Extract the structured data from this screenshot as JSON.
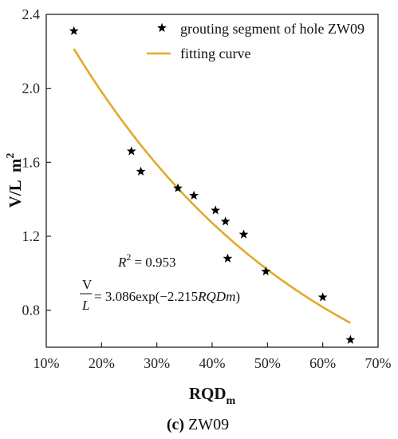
{
  "chart_data": {
    "type": "scatter",
    "xlabel": "RQD",
    "xlabel_sub": "m",
    "ylabel": "V/L  m",
    "ylabel_sup": "2",
    "xlim": [
      10,
      70
    ],
    "ylim": [
      0.6,
      2.4
    ],
    "x_ticks": [
      10,
      20,
      30,
      40,
      50,
      60,
      70
    ],
    "x_tick_labels": [
      "10%",
      "20%",
      "30%",
      "40%",
      "50%",
      "60%",
      "70%"
    ],
    "y_ticks": [
      0.8,
      1.2,
      1.6,
      2.0,
      2.4
    ],
    "y_tick_labels": [
      "0.8",
      "1.2",
      "1.6",
      "2.0",
      "2.4"
    ],
    "series": [
      {
        "name": "grouting segment of hole ZW09",
        "marker": "star",
        "color": "#000000",
        "points": [
          {
            "x": 15.0,
            "y": 2.31
          },
          {
            "x": 25.4,
            "y": 1.66
          },
          {
            "x": 27.1,
            "y": 1.55
          },
          {
            "x": 33.8,
            "y": 1.46
          },
          {
            "x": 36.7,
            "y": 1.42
          },
          {
            "x": 40.6,
            "y": 1.34
          },
          {
            "x": 42.4,
            "y": 1.28
          },
          {
            "x": 42.8,
            "y": 1.08
          },
          {
            "x": 45.7,
            "y": 1.21
          },
          {
            "x": 49.7,
            "y": 1.01
          },
          {
            "x": 60.0,
            "y": 0.87
          },
          {
            "x": 65.0,
            "y": 0.64
          }
        ]
      },
      {
        "name": "fitting curve",
        "type": "line",
        "color": "#E3A92A",
        "a": 3.086,
        "b": -2.215,
        "x_range": [
          15,
          65
        ]
      }
    ],
    "legend_position": "top-right",
    "grid": false,
    "annotations": {
      "r2_label": "R",
      "r2_sup": "2",
      "r2_value": "= 0.953",
      "eq_numerator": "V",
      "eq_denominator": "L",
      "eq_prefix": "= 3.086exp(−2.215",
      "eq_var": "RQDm",
      "eq_suffix": ")"
    },
    "caption_label": "(c)",
    "caption_text": " ZW09"
  }
}
